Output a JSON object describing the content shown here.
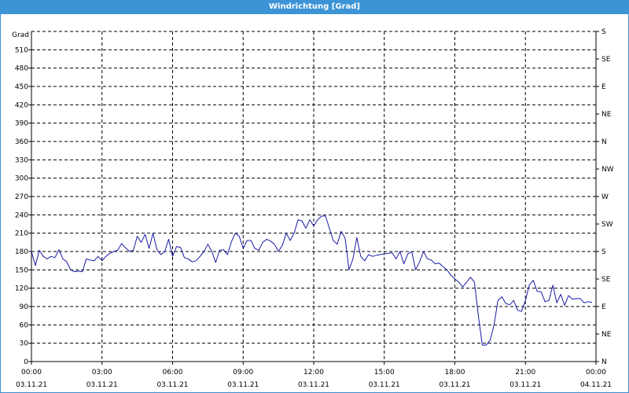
{
  "window": {
    "title": "Windrichtung [Grad]"
  },
  "colors": {
    "title_bar": "#3c94d6",
    "series": "#1a1aa6",
    "grid": "#000000"
  },
  "chart_data": {
    "type": "line",
    "title": "Windrichtung [Grad]",
    "ylabel": "Grad",
    "ylim": [
      0,
      540
    ],
    "yticks": [
      0,
      30,
      60,
      90,
      120,
      150,
      180,
      210,
      240,
      270,
      300,
      330,
      360,
      390,
      420,
      450,
      480,
      510
    ],
    "y2ticks": [
      {
        "value": 0,
        "label": "N"
      },
      {
        "value": 45,
        "label": "NE"
      },
      {
        "value": 90,
        "label": "E"
      },
      {
        "value": 135,
        "label": "SE"
      },
      {
        "value": 180,
        "label": "S"
      },
      {
        "value": 225,
        "label": "SW"
      },
      {
        "value": 270,
        "label": "W"
      },
      {
        "value": 315,
        "label": "NW"
      },
      {
        "value": 360,
        "label": "N"
      },
      {
        "value": 405,
        "label": "NE"
      },
      {
        "value": 450,
        "label": "E"
      },
      {
        "value": 495,
        "label": "SE"
      },
      {
        "value": 540,
        "label": "S"
      }
    ],
    "xlim": [
      "03.11.21 00:00",
      "04.11.21 00:00"
    ],
    "xticks": [
      {
        "time": "00:00",
        "date": "03.11.21"
      },
      {
        "time": "03:00",
        "date": "03.11.21"
      },
      {
        "time": "06:00",
        "date": "03.11.21"
      },
      {
        "time": "09:00",
        "date": "03.11.21"
      },
      {
        "time": "12:00",
        "date": "03.11.21"
      },
      {
        "time": "15:00",
        "date": "03.11.21"
      },
      {
        "time": "18:00",
        "date": "03.11.21"
      },
      {
        "time": "21:00",
        "date": "03.11.21"
      },
      {
        "time": "00:00",
        "date": "04.11.21"
      }
    ],
    "grid": true,
    "series": [
      {
        "x": [
          "00:00",
          "00:10",
          "00:20",
          "00:30",
          "00:40",
          "00:50",
          "01:00",
          "01:10",
          "01:20",
          "01:30",
          "01:40",
          "01:50",
          "02:00",
          "02:10",
          "02:20",
          "02:30",
          "02:40",
          "02:50",
          "03:00",
          "03:10",
          "03:20",
          "03:30",
          "03:40",
          "03:50",
          "04:00",
          "04:10",
          "04:20",
          "04:30",
          "04:40",
          "04:50",
          "05:00",
          "05:10",
          "05:20",
          "05:30",
          "05:40",
          "05:50",
          "06:00",
          "06:10",
          "06:20",
          "06:30",
          "06:40",
          "06:50",
          "07:00",
          "07:10",
          "07:20",
          "07:30",
          "07:40",
          "07:50",
          "08:00",
          "08:10",
          "08:20",
          "08:30",
          "08:40",
          "08:50",
          "09:00",
          "09:10",
          "09:20",
          "09:30",
          "09:40",
          "09:50",
          "10:00",
          "10:10",
          "10:20",
          "10:30",
          "10:40",
          "10:50",
          "11:00",
          "11:10",
          "11:20",
          "11:30",
          "11:40",
          "11:50",
          "12:00",
          "12:10",
          "12:20",
          "12:30",
          "12:40",
          "12:50",
          "13:00",
          "13:10",
          "13:20",
          "13:30",
          "13:40",
          "13:50",
          "14:00",
          "14:10",
          "14:20",
          "14:30",
          "14:40",
          "14:50",
          "15:00",
          "15:10",
          "15:20",
          "15:30",
          "15:40",
          "15:50",
          "16:00",
          "16:10",
          "16:20",
          "16:30",
          "16:40",
          "16:50",
          "17:00",
          "17:10",
          "17:20",
          "17:30",
          "17:40",
          "17:50",
          "18:00",
          "18:10",
          "18:20",
          "18:30",
          "18:40",
          "18:50",
          "19:00",
          "19:10",
          "19:20",
          "19:30",
          "19:40",
          "19:50",
          "20:00",
          "20:10",
          "20:20",
          "20:30",
          "20:40",
          "20:50",
          "21:00",
          "21:10",
          "21:20",
          "21:30",
          "21:40",
          "21:50",
          "22:00",
          "22:10",
          "22:20",
          "22:30",
          "22:40",
          "22:50",
          "23:00",
          "23:10",
          "23:20",
          "23:30",
          "23:40",
          "23:50"
        ],
        "values": [
          180,
          157,
          182,
          172,
          168,
          172,
          170,
          183,
          168,
          163,
          150,
          147,
          148,
          147,
          168,
          166,
          165,
          172,
          165,
          172,
          177,
          180,
          182,
          193,
          186,
          180,
          182,
          205,
          195,
          208,
          185,
          210,
          183,
          175,
          180,
          200,
          172,
          188,
          187,
          170,
          168,
          163,
          165,
          172,
          180,
          192,
          180,
          162,
          182,
          183,
          175,
          196,
          210,
          205,
          185,
          198,
          198,
          185,
          182,
          195,
          200,
          197,
          192,
          180,
          190,
          210,
          198,
          210,
          232,
          230,
          218,
          232,
          222,
          232,
          238,
          238,
          218,
          198,
          192,
          213,
          202,
          150,
          168,
          203,
          172,
          165,
          175,
          172,
          174,
          175,
          176,
          177,
          178,
          168,
          180,
          160,
          176,
          180,
          150,
          163,
          180,
          168,
          166,
          160,
          161,
          155,
          150,
          141,
          135,
          130,
          122,
          130,
          138,
          130,
          75,
          27,
          27,
          35,
          60,
          100,
          106,
          95,
          93,
          100,
          84,
          82,
          100,
          125,
          133,
          115,
          114,
          98,
          100,
          125,
          96,
          110,
          92,
          108,
          102,
          103,
          103,
          96,
          98,
          97
        ]
      }
    ]
  }
}
